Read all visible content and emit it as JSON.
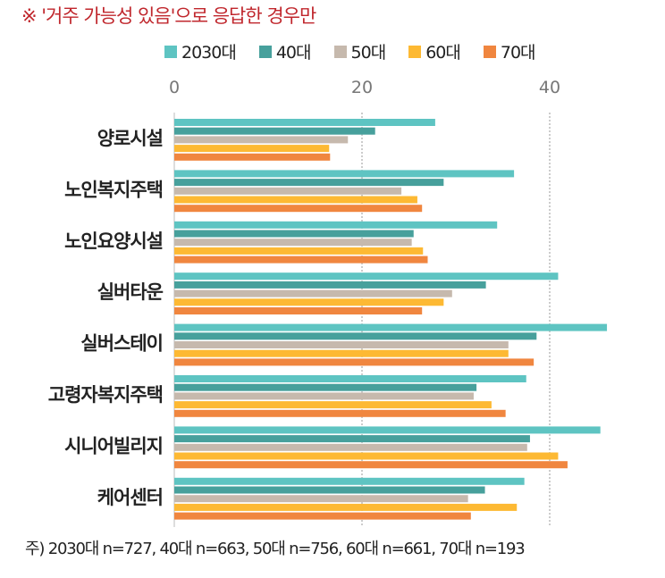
{
  "note": "※ '거주 가능성 있음'으로 응답한 경우만",
  "footnote": "주) 2030대 n=727, 40대 n=663, 50대 n=756, 60대 n=661, 70대 n=193",
  "chart_data": {
    "type": "bar",
    "orientation": "horizontal",
    "categories": [
      "양로시설",
      "노인복지주택",
      "노인요양시설",
      "실버타운",
      "실버스테이",
      "고령자복지주택",
      "시니어빌리지",
      "케어센터"
    ],
    "series": [
      {
        "name": "2030대",
        "color": "#5ec4c2",
        "values": [
          27.8,
          36.2,
          34.4,
          40.9,
          46.1,
          37.5,
          45.4,
          37.3
        ]
      },
      {
        "name": "40대",
        "color": "#47a09c",
        "values": [
          21.4,
          28.7,
          25.5,
          33.2,
          38.6,
          32.2,
          37.9,
          33.1
        ]
      },
      {
        "name": "50대",
        "color": "#c6b9ad",
        "values": [
          18.5,
          24.2,
          25.3,
          29.6,
          35.6,
          31.9,
          37.6,
          31.3
        ]
      },
      {
        "name": "60대",
        "color": "#fdb933",
        "values": [
          16.5,
          25.9,
          26.5,
          28.7,
          35.6,
          33.8,
          40.9,
          36.5
        ]
      },
      {
        "name": "70대",
        "color": "#f0863f",
        "values": [
          16.6,
          26.4,
          27.0,
          26.4,
          38.3,
          35.3,
          41.9,
          31.6
        ]
      }
    ],
    "xticks": [
      "0",
      "20",
      "40"
    ],
    "xlim": [
      0,
      48
    ],
    "grid": true,
    "legend": "top",
    "xaxis_position": "top"
  }
}
